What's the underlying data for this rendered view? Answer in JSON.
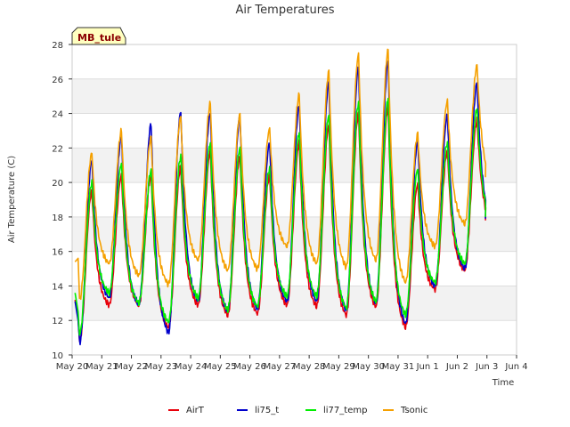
{
  "chart_data": {
    "type": "line",
    "title": "Air Temperatures",
    "xlabel": "Time",
    "ylabel": "Air Temperature (C)",
    "badge": "MB_tule",
    "xlim": [
      "May 20",
      "Jun 4"
    ],
    "ylim": [
      10,
      28
    ],
    "grid": "horizontal bands",
    "legend_position": "bottom",
    "x_ticks": [
      "May 20",
      "May 21",
      "May 22",
      "May 23",
      "May 24",
      "May 25",
      "May 26",
      "May 27",
      "May 28",
      "May 29",
      "May 30",
      "May 31",
      "Jun 1",
      "Jun 2",
      "Jun 3",
      "Jun 4"
    ],
    "y_ticks": [
      10,
      12,
      14,
      16,
      18,
      20,
      22,
      24,
      26,
      28
    ],
    "daily_extremes": [
      {
        "day": "May 20",
        "AirT": [
          10.8,
          19.5
        ],
        "li75_t": [
          10.7,
          21.3
        ],
        "li77_temp": [
          11.2,
          20.0
        ],
        "Tsonic": [
          13.2,
          21.7
        ]
      },
      {
        "day": "May 21",
        "AirT": [
          12.9,
          20.4
        ],
        "li75_t": [
          13.3,
          22.7
        ],
        "li77_temp": [
          13.6,
          21.1
        ],
        "Tsonic": [
          15.3,
          23.0
        ]
      },
      {
        "day": "May 22",
        "AirT": [
          12.9,
          20.4
        ],
        "li75_t": [
          12.9,
          23.4
        ],
        "li77_temp": [
          13.0,
          20.7
        ],
        "Tsonic": [
          14.6,
          22.6
        ]
      },
      {
        "day": "May 23",
        "AirT": [
          11.6,
          20.9
        ],
        "li75_t": [
          11.3,
          24.1
        ],
        "li77_temp": [
          11.9,
          21.5
        ],
        "Tsonic": [
          14.1,
          23.8
        ]
      },
      {
        "day": "May 24",
        "AirT": [
          12.9,
          21.8
        ],
        "li75_t": [
          13.1,
          24.1
        ],
        "li77_temp": [
          13.3,
          22.3
        ],
        "Tsonic": [
          15.5,
          24.6
        ]
      },
      {
        "day": "May 25",
        "AirT": [
          12.3,
          21.5
        ],
        "li75_t": [
          12.5,
          23.8
        ],
        "li77_temp": [
          12.6,
          22.0
        ],
        "Tsonic": [
          14.9,
          23.9
        ]
      },
      {
        "day": "May 26",
        "AirT": [
          12.4,
          20.4
        ],
        "li75_t": [
          12.7,
          22.3
        ],
        "li77_temp": [
          12.8,
          20.8
        ],
        "Tsonic": [
          15.0,
          23.1
        ]
      },
      {
        "day": "May 27",
        "AirT": [
          12.9,
          22.3
        ],
        "li75_t": [
          13.1,
          24.5
        ],
        "li77_temp": [
          13.4,
          22.9
        ],
        "Tsonic": [
          16.3,
          25.1
        ]
      },
      {
        "day": "May 28",
        "AirT": [
          12.8,
          23.3
        ],
        "li75_t": [
          13.1,
          25.8
        ],
        "li77_temp": [
          13.4,
          23.9
        ],
        "Tsonic": [
          15.3,
          26.4
        ]
      },
      {
        "day": "May 29",
        "AirT": [
          12.3,
          24.0
        ],
        "li75_t": [
          12.6,
          26.7
        ],
        "li77_temp": [
          12.7,
          24.6
        ],
        "Tsonic": [
          15.1,
          27.4
        ]
      },
      {
        "day": "May 30",
        "AirT": [
          12.8,
          24.4
        ],
        "li75_t": [
          13.0,
          27.1
        ],
        "li77_temp": [
          13.1,
          24.9
        ],
        "Tsonic": [
          15.5,
          27.7
        ]
      },
      {
        "day": "May 31",
        "AirT": [
          11.6,
          19.9
        ],
        "li75_t": [
          11.8,
          22.4
        ],
        "li77_temp": [
          12.3,
          20.8
        ],
        "Tsonic": [
          14.2,
          22.8
        ]
      },
      {
        "day": "Jun 1",
        "AirT": [
          13.8,
          21.8
        ],
        "li75_t": [
          14.0,
          23.9
        ],
        "li77_temp": [
          14.2,
          22.3
        ],
        "Tsonic": [
          16.3,
          24.7
        ]
      },
      {
        "day": "Jun 2",
        "AirT": [
          14.9,
          23.6
        ],
        "li75_t": [
          15.0,
          25.8
        ],
        "li77_temp": [
          15.3,
          24.3
        ],
        "Tsonic": [
          17.6,
          26.8
        ]
      },
      {
        "day": "Jun 3",
        "AirT": [
          17.4,
          17.4
        ],
        "li75_t": [
          17.5,
          17.5
        ],
        "li77_temp": [
          17.6,
          17.6
        ],
        "Tsonic": [
          19.9,
          19.9
        ]
      }
    ],
    "series": [
      {
        "name": "AirT",
        "color": "#e8000b"
      },
      {
        "name": "li75_t",
        "color": "#0000cc"
      },
      {
        "name": "li77_temp",
        "color": "#00ee00"
      },
      {
        "name": "Tsonic",
        "color": "#f5a000"
      }
    ]
  }
}
